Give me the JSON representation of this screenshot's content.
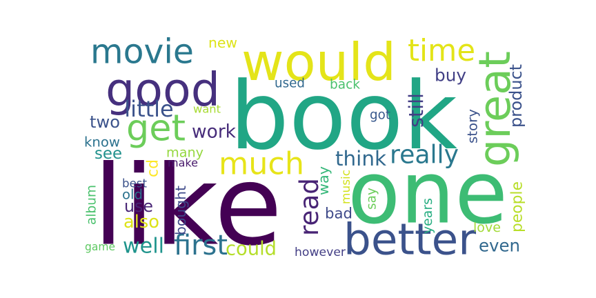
{
  "words": [
    {
      "key": "book",
      "text": "book",
      "color": "#21a685"
    },
    {
      "key": "like",
      "text": "like",
      "color": "#440154"
    },
    {
      "key": "one",
      "text": "one",
      "color": "#3dbc74"
    },
    {
      "key": "would",
      "text": "would",
      "color": "#e4e419"
    },
    {
      "key": "good",
      "text": "good",
      "color": "#46307e"
    },
    {
      "key": "great",
      "text": "great",
      "color": "#6ccd5a"
    },
    {
      "key": "better",
      "text": "better",
      "color": "#3b528b"
    },
    {
      "key": "much",
      "text": "much",
      "color": "#e7e419"
    },
    {
      "key": "get",
      "text": "get",
      "color": "#6ccd5a"
    },
    {
      "key": "movie",
      "text": "movie",
      "color": "#2a788e"
    },
    {
      "key": "time",
      "text": "time",
      "color": "#e3e418"
    },
    {
      "key": "read",
      "text": "read",
      "color": "#482475"
    },
    {
      "key": "really",
      "text": "really",
      "color": "#2a788e"
    },
    {
      "key": "think",
      "text": "think",
      "color": "#31688e"
    },
    {
      "key": "first",
      "text": "first",
      "color": "#2c728e"
    },
    {
      "key": "well",
      "text": "well",
      "color": "#1f948c"
    },
    {
      "key": "could",
      "text": "could",
      "color": "#b5de2b"
    },
    {
      "key": "even",
      "text": "even",
      "color": "#31688e"
    },
    {
      "key": "buy",
      "text": "buy",
      "color": "#424086"
    },
    {
      "key": "still",
      "text": "still",
      "color": "#433e85"
    },
    {
      "key": "product",
      "text": "product",
      "color": "#3b528b"
    },
    {
      "key": "little",
      "text": "little",
      "color": "#3b528b"
    },
    {
      "key": "new",
      "text": "new",
      "color": "#dde318"
    },
    {
      "key": "way",
      "text": "way",
      "color": "#35b779"
    },
    {
      "key": "bad",
      "text": "bad",
      "color": "#3e4989"
    },
    {
      "key": "work",
      "text": "work",
      "color": "#472c7a"
    },
    {
      "key": "two",
      "text": "two",
      "color": "#3b528b"
    },
    {
      "key": "know",
      "text": "know",
      "color": "#2c728e"
    },
    {
      "key": "see",
      "text": "see",
      "color": "#21918c"
    },
    {
      "key": "many",
      "text": "many",
      "color": "#95d840"
    },
    {
      "key": "people",
      "text": "people",
      "color": "#b8de29"
    },
    {
      "key": "love",
      "text": "love",
      "color": "#a2da37"
    },
    {
      "key": "cd",
      "text": "cd",
      "color": "#fde725"
    },
    {
      "key": "bought",
      "text": "bought",
      "color": "#3e4989"
    },
    {
      "key": "album",
      "text": "album",
      "color": "#4ac16d"
    },
    {
      "key": "also",
      "text": "also",
      "color": "#dde318"
    },
    {
      "key": "use",
      "text": "use",
      "color": "#482475"
    },
    {
      "key": "game",
      "text": "game",
      "color": "#5ec962"
    },
    {
      "key": "however",
      "text": "however",
      "color": "#433e85"
    },
    {
      "key": "want",
      "text": "want",
      "color": "#a8db34"
    },
    {
      "key": "make",
      "text": "make",
      "color": "#481a6c"
    },
    {
      "key": "best",
      "text": "best",
      "color": "#3b528b"
    },
    {
      "key": "old",
      "text": "old",
      "color": "#2c728e"
    },
    {
      "key": "used",
      "text": "used",
      "color": "#31688e"
    },
    {
      "key": "back",
      "text": "back",
      "color": "#4ac16d"
    },
    {
      "key": "got",
      "text": "got",
      "color": "#38588c"
    },
    {
      "key": "story",
      "text": "story",
      "color": "#3b528b"
    },
    {
      "key": "music",
      "text": "music",
      "color": "#d2e21b"
    },
    {
      "key": "say",
      "text": "say",
      "color": "#6ccd5a"
    },
    {
      "key": "years",
      "text": "years",
      "color": "#26ad81"
    }
  ]
}
